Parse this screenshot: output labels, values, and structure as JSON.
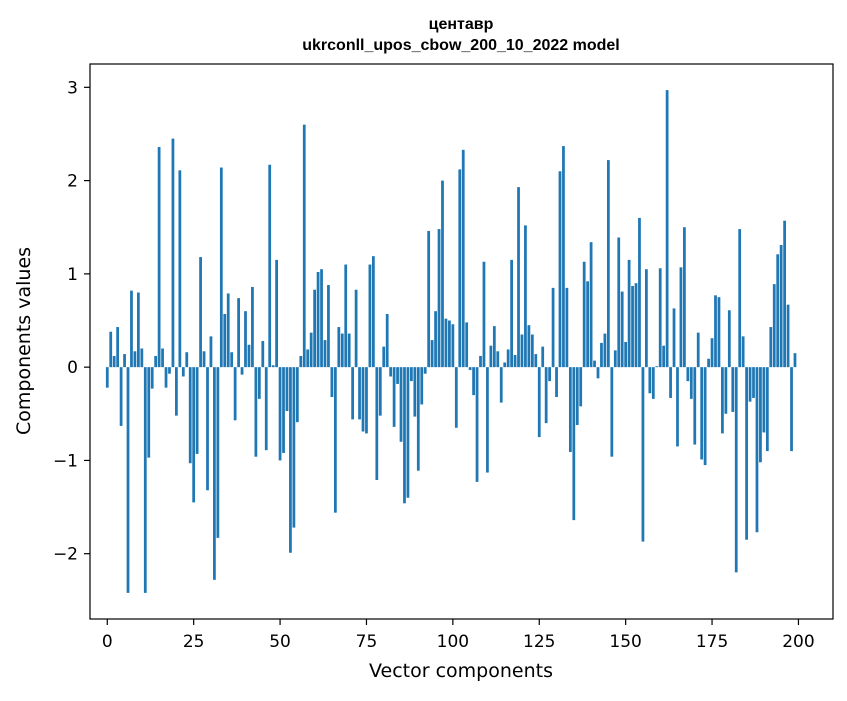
{
  "chart_data": {
    "type": "bar",
    "title": "центавр",
    "subtitle": "ukrconll_upos_cbow_200_10_2022 model",
    "xlabel": "Vector components",
    "ylabel": "Components values",
    "xlim": [
      -5,
      210
    ],
    "ylim": [
      -2.7,
      3.25
    ],
    "xticks": [
      0,
      25,
      50,
      75,
      100,
      125,
      150,
      175,
      200
    ],
    "yticks": [
      -2,
      -1,
      0,
      1,
      2,
      3
    ],
    "ytick_labels": [
      "−2",
      "−1",
      "0",
      "1",
      "2",
      "3"
    ],
    "bar_color": "#1f77b4",
    "grid": false,
    "legend": "none",
    "x": [
      0,
      1,
      2,
      3,
      4,
      5,
      6,
      7,
      8,
      9,
      10,
      11,
      12,
      13,
      14,
      15,
      16,
      17,
      18,
      19,
      20,
      21,
      22,
      23,
      24,
      25,
      26,
      27,
      28,
      29,
      30,
      31,
      32,
      33,
      34,
      35,
      36,
      37,
      38,
      39,
      40,
      41,
      42,
      43,
      44,
      45,
      46,
      47,
      48,
      49,
      50,
      51,
      52,
      53,
      54,
      55,
      56,
      57,
      58,
      59,
      60,
      61,
      62,
      63,
      64,
      65,
      66,
      67,
      68,
      69,
      70,
      71,
      72,
      73,
      74,
      75,
      76,
      77,
      78,
      79,
      80,
      81,
      82,
      83,
      84,
      85,
      86,
      87,
      88,
      89,
      90,
      91,
      92,
      93,
      94,
      95,
      96,
      97,
      98,
      99,
      100,
      101,
      102,
      103,
      104,
      105,
      106,
      107,
      108,
      109,
      110,
      111,
      112,
      113,
      114,
      115,
      116,
      117,
      118,
      119,
      120,
      121,
      122,
      123,
      124,
      125,
      126,
      127,
      128,
      129,
      130,
      131,
      132,
      133,
      134,
      135,
      136,
      137,
      138,
      139,
      140,
      141,
      142,
      143,
      144,
      145,
      146,
      147,
      148,
      149,
      150,
      151,
      152,
      153,
      154,
      155,
      156,
      157,
      158,
      159,
      160,
      161,
      162,
      163,
      164,
      165,
      166,
      167,
      168,
      169,
      170,
      171,
      172,
      173,
      174,
      175,
      176,
      177,
      178,
      179,
      180,
      181,
      182,
      183,
      184,
      185,
      186,
      187,
      188,
      189,
      190,
      191,
      192,
      193,
      194,
      195,
      196,
      197,
      198,
      199
    ],
    "values": [
      -0.22,
      0.38,
      0.12,
      0.43,
      -0.63,
      0.14,
      -2.42,
      0.82,
      0.17,
      0.8,
      0.2,
      -2.42,
      -0.97,
      -0.23,
      0.12,
      2.36,
      0.2,
      -0.22,
      -0.07,
      2.45,
      -0.52,
      2.11,
      -0.1,
      0.16,
      -1.03,
      -1.45,
      -0.93,
      1.18,
      0.17,
      -1.32,
      0.33,
      -2.28,
      -1.83,
      2.14,
      0.57,
      0.79,
      0.16,
      -0.57,
      0.74,
      -0.08,
      0.6,
      0.24,
      0.86,
      -0.96,
      -0.34,
      0.28,
      -0.89,
      2.17,
      0.02,
      1.15,
      -1.0,
      -0.92,
      -0.47,
      -1.99,
      -1.72,
      -0.59,
      0.12,
      2.6,
      0.19,
      0.37,
      0.83,
      1.02,
      1.05,
      0.29,
      0.88,
      -0.32,
      -1.56,
      0.43,
      0.36,
      1.1,
      0.36,
      -0.56,
      0.83,
      -0.56,
      -0.69,
      -0.71,
      1.1,
      1.19,
      -1.21,
      -0.52,
      0.22,
      0.57,
      -0.1,
      -0.64,
      -0.18,
      -0.8,
      -1.46,
      -1.4,
      -0.15,
      -0.53,
      -1.11,
      -0.4,
      -0.07,
      1.46,
      0.29,
      0.6,
      1.48,
      2.0,
      0.52,
      0.5,
      0.46,
      -0.65,
      2.12,
      2.33,
      0.48,
      -0.03,
      -0.3,
      -1.23,
      0.12,
      1.13,
      -1.13,
      0.23,
      0.44,
      0.17,
      -0.38,
      0.05,
      0.19,
      1.15,
      0.13,
      1.93,
      0.35,
      1.52,
      0.45,
      0.35,
      0.14,
      -0.75,
      0.22,
      -0.6,
      -0.15,
      0.85,
      -0.32,
      2.1,
      2.37,
      0.85,
      -0.91,
      -1.64,
      -0.62,
      -0.42,
      1.13,
      0.92,
      1.34,
      0.07,
      -0.12,
      0.26,
      0.36,
      2.22,
      -0.96,
      0.18,
      1.39,
      0.81,
      0.27,
      1.15,
      0.87,
      0.9,
      1.6,
      -1.87,
      1.05,
      -0.28,
      -0.34,
      0.01,
      1.06,
      0.23,
      2.97,
      -0.33,
      0.63,
      -0.85,
      1.07,
      1.5,
      -0.15,
      -0.34,
      -0.83,
      0.37,
      -0.99,
      -1.05,
      0.09,
      0.31,
      0.77,
      0.75,
      -0.71,
      -0.5,
      0.61,
      -0.48,
      -2.2,
      1.48,
      0.33,
      -1.85,
      -0.37,
      -0.33,
      -1.77,
      -1.02,
      -0.7,
      -0.9,
      0.43,
      0.89,
      1.21,
      1.31,
      1.57,
      0.67,
      -0.9,
      0.15
    ]
  }
}
